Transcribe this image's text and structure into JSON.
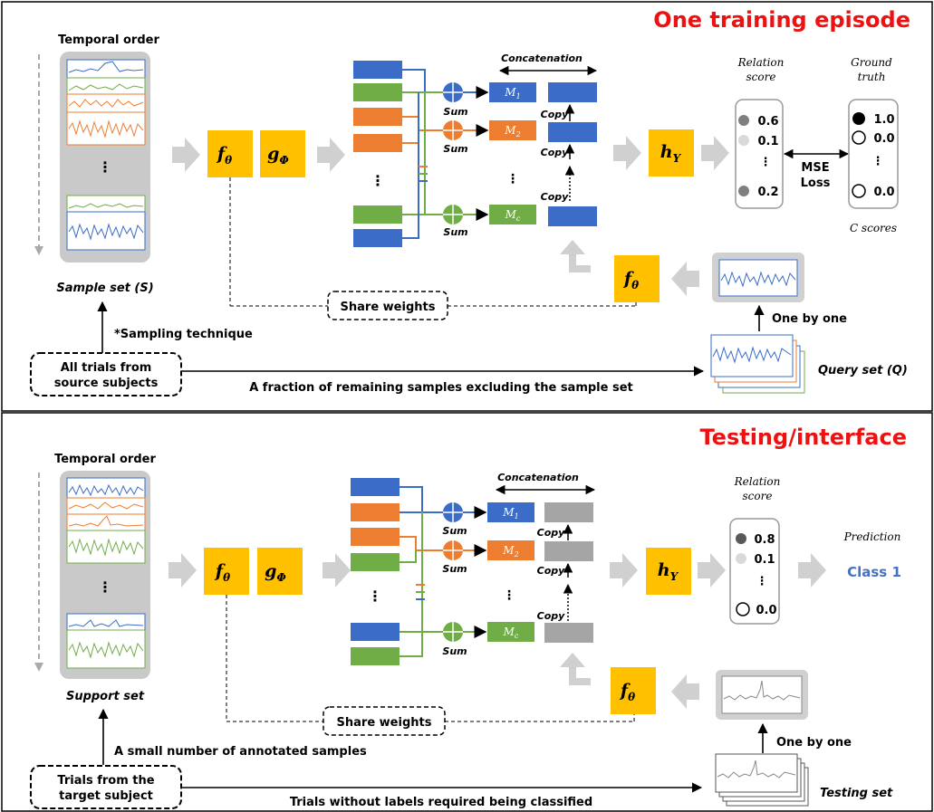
{
  "panels": [
    {
      "title": "One training episode",
      "temporal_label": "Temporal order",
      "set_label": "Sample set (S)",
      "sampling_label": "*Sampling technique",
      "source_box": [
        "All trials from",
        "source subjects"
      ],
      "bottom_arrow_label": "A fraction of remaining samples excluding the sample set",
      "query_label": "Query set (Q)",
      "one_by_one": "One by one",
      "share_weights": "Share weights",
      "concat": "Concatenation",
      "sum": "Sum",
      "copy": "Copy",
      "relation_title": [
        "Relation",
        "score"
      ],
      "scores": [
        "0.6",
        "0.1",
        "0.2"
      ],
      "ground_title": [
        "Ground",
        "truth"
      ],
      "truths": [
        "1.0",
        "0.0",
        "0.0"
      ],
      "loss": [
        "MSE",
        "Loss"
      ],
      "c_scores": "C scores"
    },
    {
      "title": "Testing/interface",
      "temporal_label": "Temporal order",
      "set_label": "Support set",
      "sampling_label": "A small number of annotated samples",
      "source_box": [
        "Trials from the",
        "target subject"
      ],
      "bottom_arrow_label": "Trials without labels required being classified",
      "query_label": "Testing set",
      "one_by_one": "One by one",
      "share_weights": "Share weights",
      "concat": "Concatenation",
      "sum": "Sum",
      "copy": "Copy",
      "relation_title": [
        "Relation",
        "score"
      ],
      "scores": [
        "0.8",
        "0.1",
        "0.0"
      ],
      "prediction_title": "Prediction",
      "prediction_value": "Class 1"
    }
  ],
  "modules": {
    "f": "f",
    "f_sub": "θ",
    "g": "g",
    "g_sub": "Φ",
    "h": "h",
    "h_sub": "Υ",
    "m": "M",
    "m_subs": [
      "1",
      "2",
      "c"
    ]
  },
  "colors": {
    "title_red": "#ee1111",
    "module_yellow": "#ffc000",
    "blue": "#3a6cc8",
    "orange": "#ed7d31",
    "green": "#70ad47",
    "gray_copy": "#a5a5a5",
    "class_blue": "#4472c4"
  }
}
